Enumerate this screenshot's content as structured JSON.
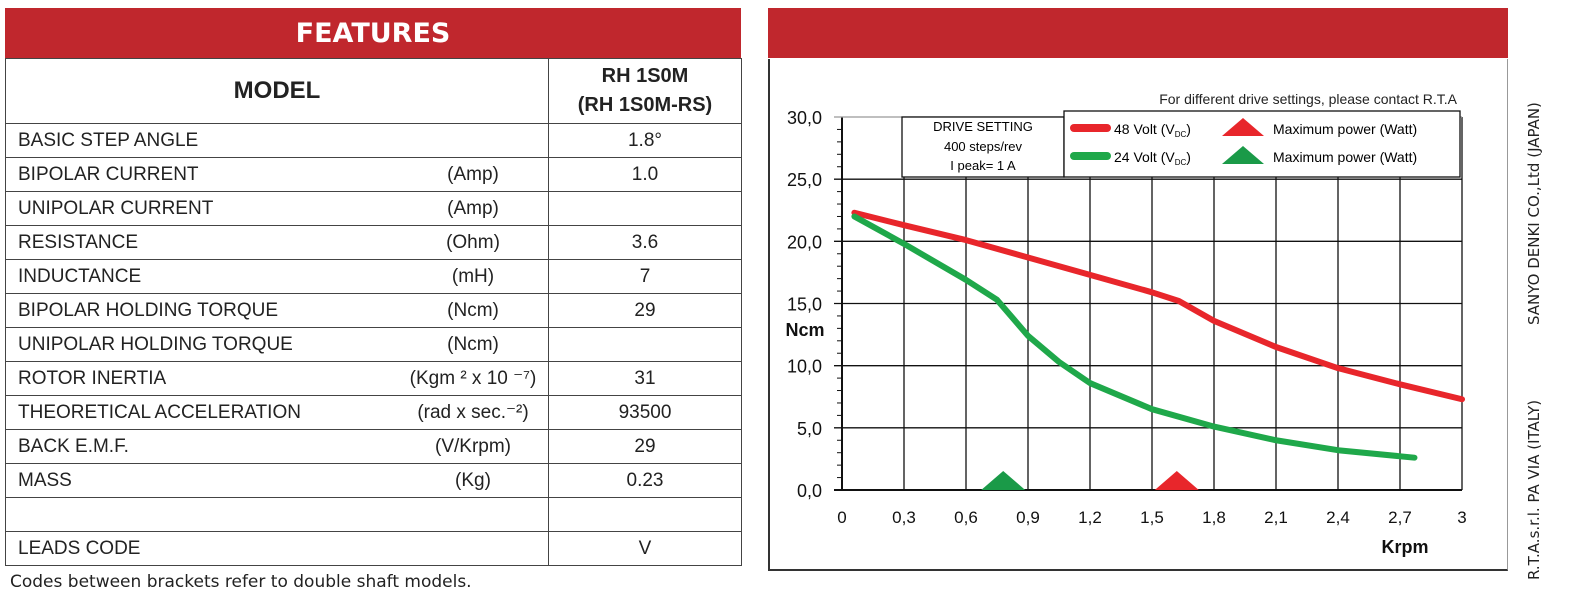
{
  "features": {
    "title": "FEATURES",
    "model_label": "MODEL",
    "model_name": "RH 1S0M",
    "model_name_alt": "(RH 1S0M-RS)",
    "rows": [
      {
        "name": "BASIC STEP ANGLE",
        "unit": "",
        "value": "1.8°"
      },
      {
        "name": "BIPOLAR CURRENT",
        "unit": "(Amp)",
        "value": "1.0"
      },
      {
        "name": "UNIPOLAR CURRENT",
        "unit": "(Amp)",
        "value": ""
      },
      {
        "name": "RESISTANCE",
        "unit": "(Ohm)",
        "value": "3.6"
      },
      {
        "name": "INDUCTANCE",
        "unit": "(mH)",
        "value": "7"
      },
      {
        "name": "BIPOLAR HOLDING TORQUE",
        "unit": "(Ncm)",
        "value": "29"
      },
      {
        "name": "UNIPOLAR HOLDING TORQUE",
        "unit": "(Ncm)",
        "value": ""
      },
      {
        "name": "ROTOR INERTIA",
        "unit": "(Kgm ² x 10 ⁻⁷)",
        "value": "31"
      },
      {
        "name": "THEORETICAL ACCELERATION",
        "unit": "(rad x sec.⁻²)",
        "value": "93500"
      },
      {
        "name": "BACK E.M.F.",
        "unit": "(V/Krpm)",
        "value": "29"
      },
      {
        "name": "MASS",
        "unit": "(Kg)",
        "value": "0.23"
      },
      {
        "name": "",
        "unit": "",
        "value": ""
      },
      {
        "name": "LEADS CODE",
        "unit": "",
        "value": "V"
      }
    ],
    "footnote": "Codes between brackets refer to double shaft models."
  },
  "side_text": {
    "line1": "SANYO DENKI CO.,Ltd (JAPAN)",
    "line2": "R.T.A.s.r.l. PA  VIA (ITALY)"
  },
  "chart_data": {
    "type": "line",
    "note": "For different drive settings, please contact R.T.A",
    "drive_setting": {
      "title": "DRIVE SETTING",
      "steps": "400 steps/rev",
      "peak": "I peak= 1 A"
    },
    "xlabel": "Krpm",
    "ylabel": "Ncm",
    "xlim": [
      0,
      3
    ],
    "ylim": [
      0,
      30
    ],
    "xticks": [
      "0",
      "0,3",
      "0,6",
      "0,9",
      "1,2",
      "1,5",
      "1,8",
      "2,1",
      "2,4",
      "2,7",
      "3"
    ],
    "yticks": [
      "0,0",
      "5,0",
      "10,0",
      "15,0",
      "20,0",
      "25,0",
      "30,0"
    ],
    "grid": true,
    "legend_position": "top-right",
    "series": [
      {
        "name": "48 Volt (VDC)",
        "label_main": "48 Volt (V",
        "label_sub": "DC",
        "label_end": ")",
        "marker_label": "Maximum power (Watt)",
        "color": "#e8262b",
        "x": [
          0.06,
          0.3,
          0.6,
          0.9,
          1.2,
          1.5,
          1.63,
          1.8,
          2.1,
          2.4,
          2.7,
          3.0
        ],
        "y": [
          22.3,
          21.3,
          20.1,
          18.7,
          17.3,
          15.9,
          15.2,
          13.6,
          11.5,
          9.8,
          8.5,
          7.3
        ],
        "max_power_x": 1.62
      },
      {
        "name": "24 Volt (VDC)",
        "label_main": "24 Volt (V",
        "label_sub": "DC",
        "label_end": ")",
        "marker_label": "Maximum power (Watt)",
        "color": "#1fa84a",
        "x": [
          0.06,
          0.3,
          0.6,
          0.75,
          0.9,
          1.05,
          1.2,
          1.5,
          1.8,
          2.1,
          2.4,
          2.77
        ],
        "y": [
          22.0,
          19.8,
          16.9,
          15.3,
          12.4,
          10.3,
          8.6,
          6.5,
          5.1,
          4.0,
          3.2,
          2.6
        ],
        "max_power_x": 0.78
      }
    ]
  }
}
